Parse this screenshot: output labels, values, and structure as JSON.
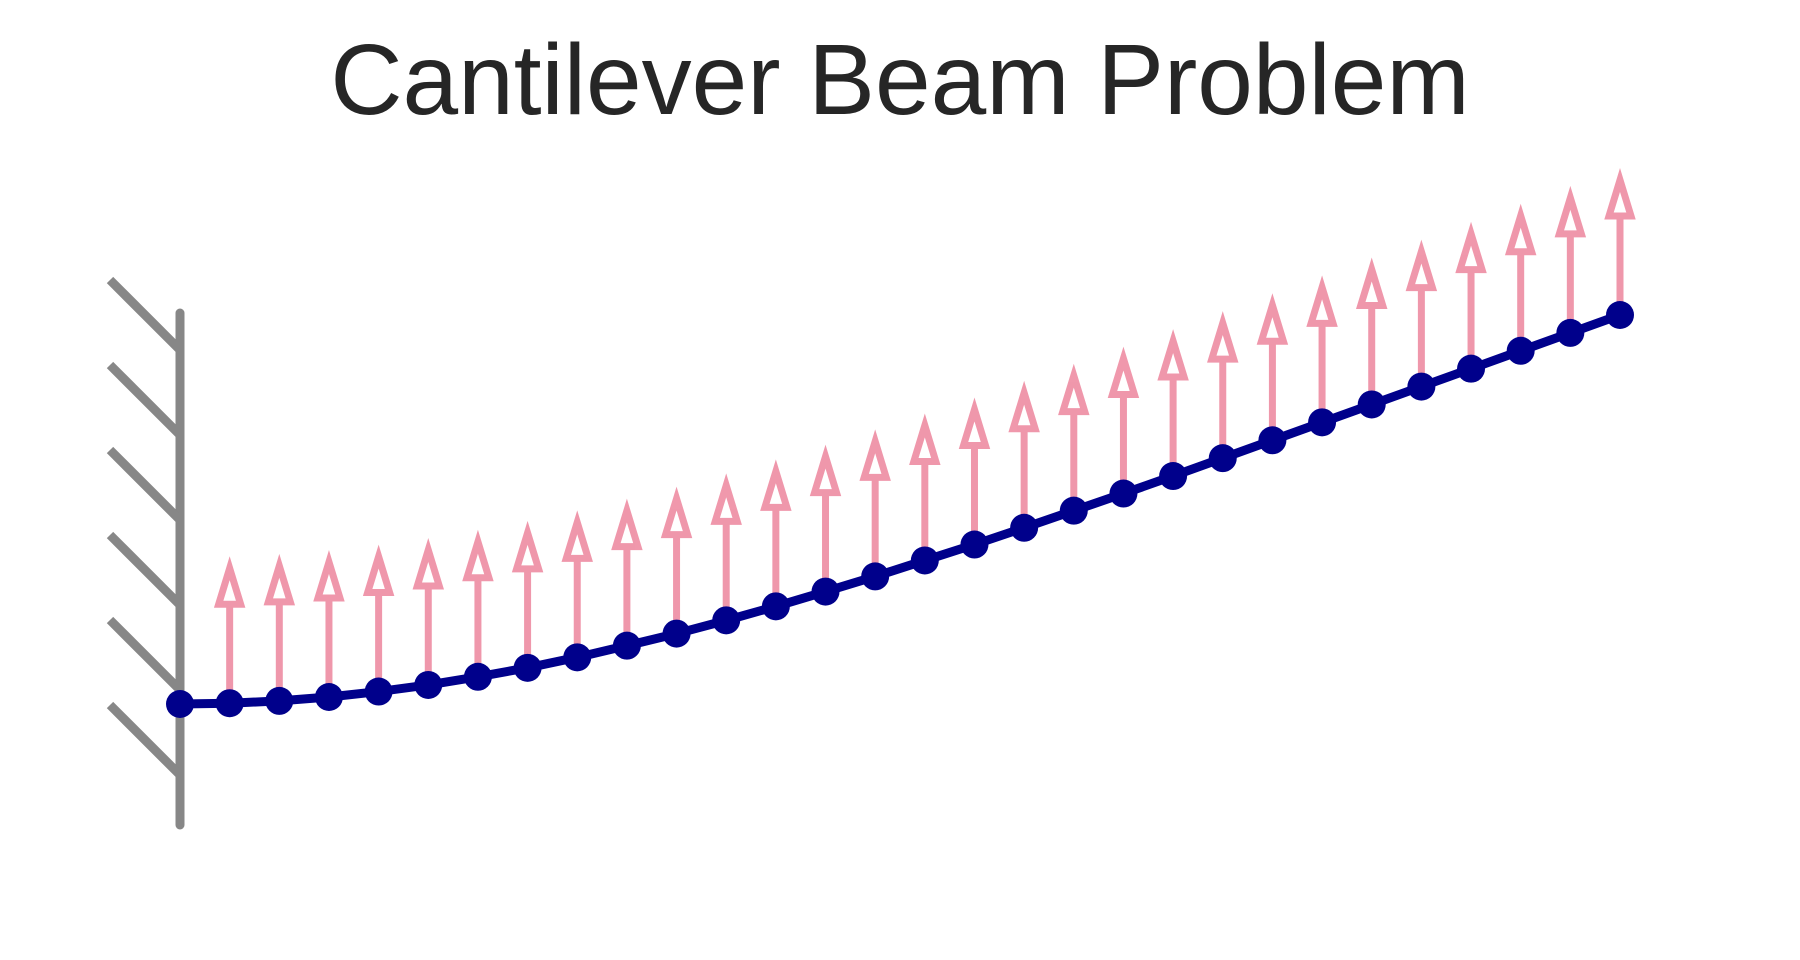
{
  "title": "Cantilever Beam Problem",
  "colors": {
    "beam": "#00008b",
    "load_arrow": "#e8617f",
    "support": "#878787",
    "title": "#262626"
  },
  "icons": {
    "support": "fixed-wall-hatch",
    "load": "upward-distributed-load-arrows"
  },
  "beam": {
    "node_count": 30,
    "deflection_shape": "upward-curving",
    "nodes_y_relative": [
      0.0,
      0.002,
      0.008,
      0.018,
      0.032,
      0.049,
      0.07,
      0.093,
      0.12,
      0.15,
      0.181,
      0.215,
      0.251,
      0.289,
      0.328,
      0.369,
      0.41,
      0.453,
      0.497,
      0.541,
      0.586,
      0.632,
      0.678,
      0.724,
      0.77,
      0.816,
      0.862,
      0.908,
      0.954,
      1.0
    ]
  },
  "load": {
    "direction": "up",
    "arrow_count": 29
  }
}
